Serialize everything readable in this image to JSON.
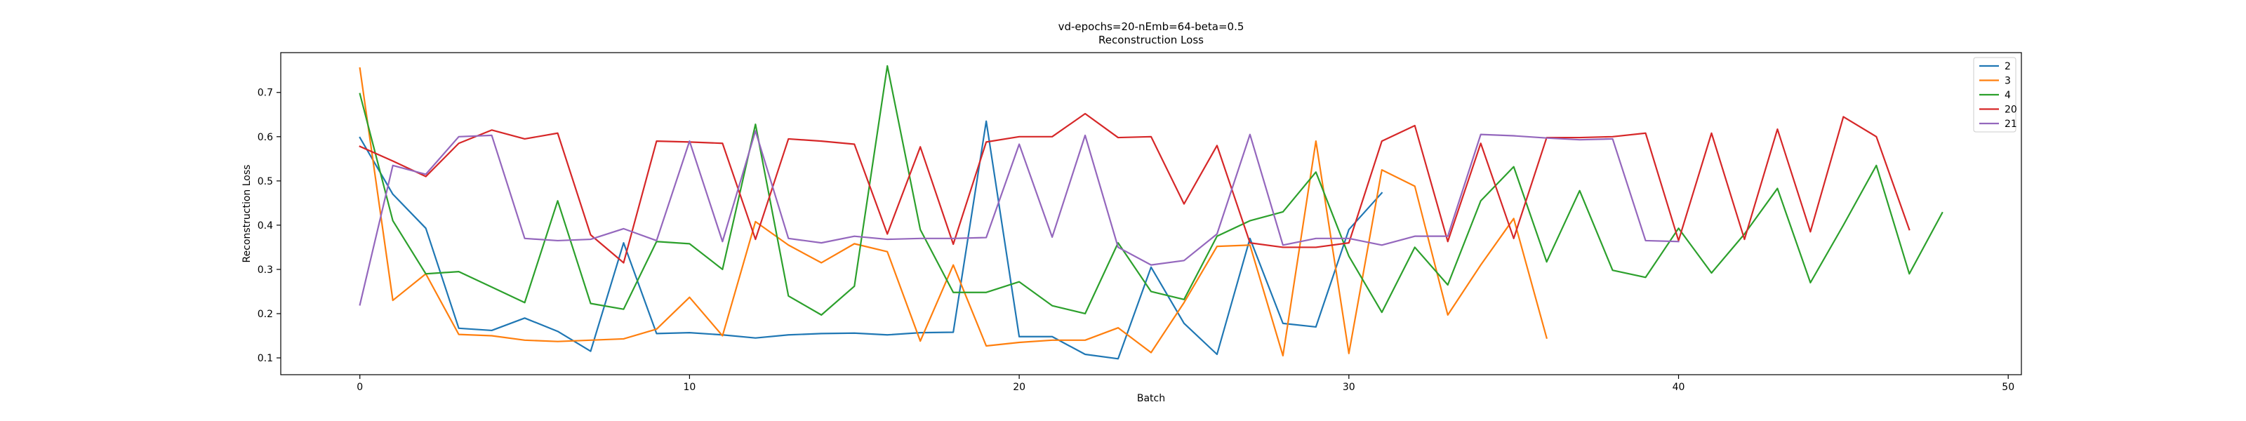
{
  "chart_data": {
    "type": "line",
    "title": "vd-epochs=20-nEmb=64-beta=0.5",
    "subtitle": "Reconstruction Loss",
    "xlabel": "Batch",
    "ylabel": "Reconstruction Loss",
    "xlim": [
      -2.4,
      50.4
    ],
    "ylim": [
      0.062,
      0.79
    ],
    "xticks": [
      0,
      10,
      20,
      30,
      40,
      50
    ],
    "yticks": [
      0.1,
      0.2,
      0.3,
      0.4,
      0.5,
      0.6,
      0.7
    ],
    "grid": false,
    "legend": "top-right",
    "series": [
      {
        "name": "2",
        "color": "#1f77b4",
        "x": [
          0,
          1,
          2,
          3,
          4,
          5,
          6,
          7,
          8,
          9,
          10,
          11,
          12,
          13,
          14,
          15,
          16,
          17,
          18,
          19,
          20,
          21,
          22,
          23,
          24,
          25,
          26,
          27,
          28,
          29,
          30,
          31
        ],
        "values": [
          0.598,
          0.47,
          0.393,
          0.167,
          0.162,
          0.19,
          0.16,
          0.115,
          0.36,
          0.155,
          0.157,
          0.152,
          0.145,
          0.152,
          0.155,
          0.156,
          0.152,
          0.157,
          0.158,
          0.635,
          0.148,
          0.148,
          0.108,
          0.098,
          0.305,
          0.178,
          0.108,
          0.37,
          0.178,
          0.17,
          0.39,
          0.473
        ]
      },
      {
        "name": "3",
        "color": "#ff7f0e",
        "x": [
          0,
          1,
          2,
          3,
          4,
          5,
          6,
          7,
          8,
          9,
          10,
          11,
          12,
          13,
          14,
          15,
          16,
          17,
          18,
          19,
          20,
          21,
          22,
          23,
          24,
          25,
          26,
          27,
          28,
          29,
          30,
          31,
          32,
          33,
          34,
          35,
          36
        ],
        "values": [
          0.755,
          0.23,
          0.29,
          0.153,
          0.15,
          0.14,
          0.137,
          0.14,
          0.143,
          0.165,
          0.237,
          0.15,
          0.408,
          0.355,
          0.315,
          0.358,
          0.34,
          0.138,
          0.31,
          0.127,
          0.135,
          0.14,
          0.14,
          0.168,
          0.112,
          0.225,
          0.352,
          0.355,
          0.105,
          0.59,
          0.11,
          0.525,
          0.488,
          0.197,
          0.31,
          0.415,
          0.145
        ]
      },
      {
        "name": "4",
        "color": "#2ca02c",
        "x": [
          0,
          1,
          2,
          3,
          4,
          5,
          6,
          7,
          8,
          9,
          10,
          11,
          12,
          13,
          14,
          15,
          16,
          17,
          18,
          19,
          20,
          21,
          22,
          23,
          24,
          25,
          26,
          27,
          28,
          29,
          30,
          31,
          32,
          33,
          34,
          35,
          36,
          37,
          38,
          39,
          40,
          41,
          42,
          43,
          44,
          45,
          46,
          47,
          48
        ],
        "values": [
          0.697,
          0.41,
          0.29,
          0.295,
          0.26,
          0.225,
          0.455,
          0.223,
          0.21,
          0.363,
          0.358,
          0.3,
          0.628,
          0.24,
          0.197,
          0.262,
          0.76,
          0.39,
          0.248,
          0.248,
          0.272,
          0.218,
          0.2,
          0.36,
          0.25,
          0.232,
          0.375,
          0.41,
          0.43,
          0.52,
          0.33,
          0.203,
          0.35,
          0.265,
          0.455,
          0.532,
          0.317,
          0.478,
          0.298,
          0.282,
          0.393,
          0.292,
          0.38,
          0.483,
          0.27,
          0.4,
          0.535,
          0.29,
          0.428
        ]
      },
      {
        "name": "20",
        "color": "#d62728",
        "x": [
          0,
          1,
          2,
          3,
          4,
          5,
          6,
          7,
          8,
          9,
          10,
          11,
          12,
          13,
          14,
          15,
          16,
          17,
          18,
          19,
          20,
          21,
          22,
          23,
          24,
          25,
          26,
          27,
          28,
          29,
          30,
          31,
          32,
          33,
          34,
          35,
          36,
          37,
          38,
          39,
          40,
          41,
          42,
          43,
          44,
          45,
          46,
          47
        ],
        "values": [
          0.578,
          0.545,
          0.51,
          0.585,
          0.615,
          0.595,
          0.608,
          0.378,
          0.315,
          0.59,
          0.588,
          0.585,
          0.368,
          0.595,
          0.59,
          0.583,
          0.38,
          0.577,
          0.357,
          0.588,
          0.6,
          0.6,
          0.652,
          0.598,
          0.6,
          0.448,
          0.58,
          0.36,
          0.35,
          0.35,
          0.36,
          0.59,
          0.625,
          0.363,
          0.585,
          0.37,
          0.598,
          0.598,
          0.6,
          0.608,
          0.365,
          0.608,
          0.368,
          0.617,
          0.385,
          0.645,
          0.6,
          0.39
        ]
      },
      {
        "name": "21",
        "color": "#9467bd",
        "x": [
          0,
          1,
          2,
          3,
          4,
          5,
          6,
          7,
          8,
          9,
          10,
          11,
          12,
          13,
          14,
          15,
          16,
          17,
          18,
          19,
          20,
          21,
          22,
          23,
          24,
          25,
          26,
          27,
          28,
          29,
          30,
          31,
          32,
          33,
          34,
          35,
          36,
          37,
          38,
          39,
          40
        ],
        "values": [
          0.22,
          0.535,
          0.515,
          0.6,
          0.603,
          0.37,
          0.365,
          0.368,
          0.392,
          0.365,
          0.59,
          0.363,
          0.613,
          0.37,
          0.36,
          0.375,
          0.368,
          0.37,
          0.37,
          0.372,
          0.583,
          0.373,
          0.603,
          0.35,
          0.31,
          0.32,
          0.38,
          0.605,
          0.355,
          0.37,
          0.37,
          0.355,
          0.375,
          0.375,
          0.605,
          0.602,
          0.597,
          0.593,
          0.595,
          0.365,
          0.363
        ]
      }
    ]
  }
}
